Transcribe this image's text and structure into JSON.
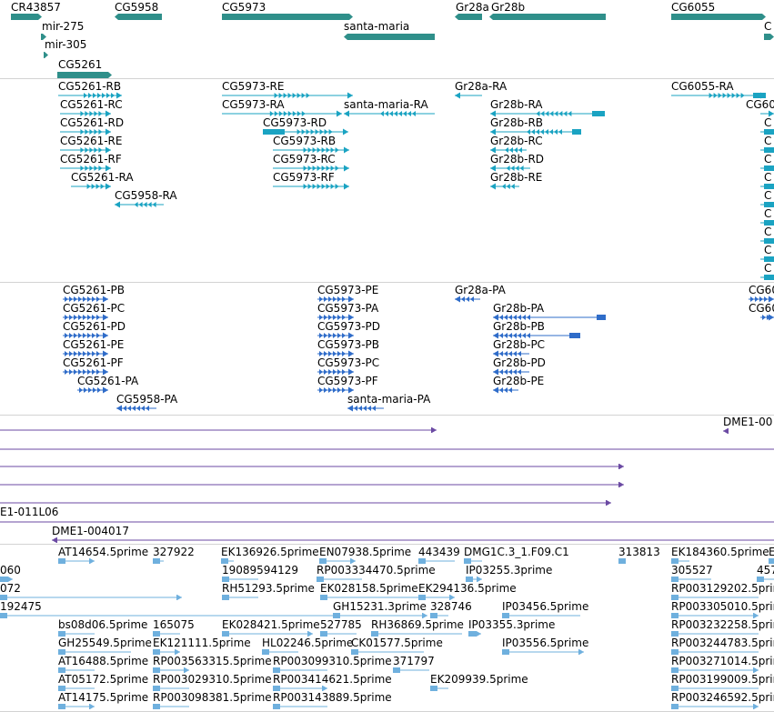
{
  "colors": {
    "gene": "#2f8f8a",
    "transcript": "#1aa3c2",
    "protein": "#2f6cc9",
    "clone": "#6b4aa3",
    "est": "#6fb0de",
    "separator": "#d3d3d3",
    "text": "#000000"
  },
  "tracks": {
    "genes": [
      {
        "id": "CR43857",
        "label": "CR43857"
      },
      {
        "id": "CG5958",
        "label": "CG5958"
      },
      {
        "id": "CG5973",
        "label": "CG5973"
      },
      {
        "id": "Gr28a",
        "label": "Gr28a"
      },
      {
        "id": "Gr28b",
        "label": "Gr28b"
      },
      {
        "id": "CG6055",
        "label": "CG6055"
      },
      {
        "id": "mir-275",
        "label": "mir-275"
      },
      {
        "id": "mir-305",
        "label": "mir-305"
      },
      {
        "id": "santa-maria",
        "label": "santa-maria"
      },
      {
        "id": "CG5261",
        "label": "CG5261"
      },
      {
        "id": "C-edge",
        "label": "C"
      }
    ],
    "transcripts": [
      {
        "label": "CG5261-RB"
      },
      {
        "label": "CG5261-RC"
      },
      {
        "label": "CG5261-RD"
      },
      {
        "label": "CG5261-RE"
      },
      {
        "label": "CG5261-RF"
      },
      {
        "label": "CG5261-RA"
      },
      {
        "label": "CG5958-RA"
      },
      {
        "label": "CG5973-RE"
      },
      {
        "label": "CG5973-RA"
      },
      {
        "label": "santa-maria-RA"
      },
      {
        "label": "CG5973-RD"
      },
      {
        "label": "CG5973-RB"
      },
      {
        "label": "CG5973-RC"
      },
      {
        "label": "CG5973-RF"
      },
      {
        "label": "Gr28a-RA"
      },
      {
        "label": "Gr28b-RA"
      },
      {
        "label": "Gr28b-RB"
      },
      {
        "label": "Gr28b-RC"
      },
      {
        "label": "Gr28b-RD"
      },
      {
        "label": "Gr28b-RE"
      },
      {
        "label": "CG6055-RA"
      },
      {
        "label": "CG60"
      },
      {
        "label": "C"
      },
      {
        "label": "C"
      },
      {
        "label": "C"
      },
      {
        "label": "C"
      },
      {
        "label": "C"
      },
      {
        "label": "C"
      },
      {
        "label": "C"
      },
      {
        "label": "C"
      },
      {
        "label": "C"
      }
    ],
    "proteins": [
      {
        "label": "CG5261-PB"
      },
      {
        "label": "CG5261-PC"
      },
      {
        "label": "CG5261-PD"
      },
      {
        "label": "CG5261-PE"
      },
      {
        "label": "CG5261-PF"
      },
      {
        "label": "CG5261-PA"
      },
      {
        "label": "CG5958-PA"
      },
      {
        "label": "CG5973-PE"
      },
      {
        "label": "CG5973-PA"
      },
      {
        "label": "CG5973-PD"
      },
      {
        "label": "CG5973-PB"
      },
      {
        "label": "CG5973-PC"
      },
      {
        "label": "CG5973-PF"
      },
      {
        "label": "santa-maria-PA"
      },
      {
        "label": "Gr28a-PA"
      },
      {
        "label": "Gr28b-PA"
      },
      {
        "label": "Gr28b-PB"
      },
      {
        "label": "Gr28b-PC"
      },
      {
        "label": "Gr28b-PD"
      },
      {
        "label": "Gr28b-PE"
      },
      {
        "label": "CG60"
      },
      {
        "label": "CG60"
      }
    ],
    "clones": [
      {
        "label": "DME1-00"
      },
      {
        "label": "E1-011L06"
      },
      {
        "label": "DME1-004017"
      }
    ],
    "ests": [
      {
        "label": "AT14654.5prime"
      },
      {
        "label": "327922"
      },
      {
        "label": "EK136926.5prime"
      },
      {
        "label": "EN07938.5prime"
      },
      {
        "label": "443439"
      },
      {
        "label": "DMG1C.3_1.F09.C1"
      },
      {
        "label": "313813"
      },
      {
        "label": "EK184360.5prime"
      },
      {
        "label": "E"
      },
      {
        "label": "060"
      },
      {
        "label": "19089594129"
      },
      {
        "label": "RP003334470.5prime"
      },
      {
        "label": "IP03255.3prime"
      },
      {
        "label": "305527"
      },
      {
        "label": "457"
      },
      {
        "label": "072"
      },
      {
        "label": "RH51293.5prime"
      },
      {
        "label": "EK028158.5prime"
      },
      {
        "label": "EK294136.5prime"
      },
      {
        "label": "RP003129202.5prime"
      },
      {
        "label": "192475"
      },
      {
        "label": "GH15231.3prime"
      },
      {
        "label": "328746"
      },
      {
        "label": "IP03456.5prime"
      },
      {
        "label": "RP003305010.5prime"
      },
      {
        "label": "bs08d06.5prime"
      },
      {
        "label": "165075"
      },
      {
        "label": "EK028421.5prime"
      },
      {
        "label": "527785"
      },
      {
        "label": "RH36869.5prime"
      },
      {
        "label": "IP03355.3prime"
      },
      {
        "label": "RP003232258.5prime"
      },
      {
        "label": "GH25549.5prime"
      },
      {
        "label": "EK121111.5prime"
      },
      {
        "label": "HL02246.5prime"
      },
      {
        "label": "CK01577.5prime"
      },
      {
        "label": "IP03556.5prime"
      },
      {
        "label": "RP003244783.5prime"
      },
      {
        "label": "AT16488.5prime"
      },
      {
        "label": "RP003563315.5prime"
      },
      {
        "label": "RP003099310.5prime"
      },
      {
        "label": "371797"
      },
      {
        "label": "RP003271014.5prime"
      },
      {
        "label": "AT05172.5prime"
      },
      {
        "label": "RP003029310.5prime"
      },
      {
        "label": "RP003414621.5prime"
      },
      {
        "label": "EK209939.5prime"
      },
      {
        "label": "RP003199009.5prime"
      },
      {
        "label": "AT14175.5prime"
      },
      {
        "label": "RP003098381.5prime"
      },
      {
        "label": "RP003143889.5prime"
      },
      {
        "label": "RP003246592.5prime"
      }
    ]
  }
}
